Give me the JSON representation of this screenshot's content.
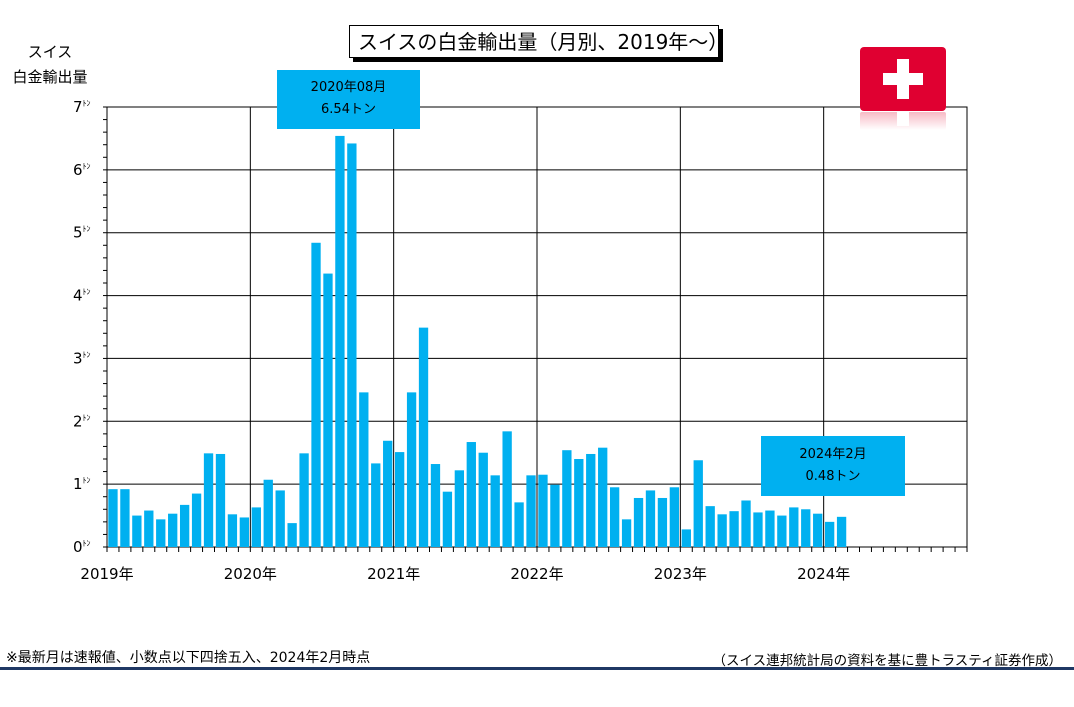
{
  "chart_data": {
    "type": "bar",
    "title": "スイスの白金輸出量（月別、2019年～）",
    "ylabel_line1": "スイス",
    "ylabel_line2": "白金輸出量",
    "ylim": [
      0,
      7
    ],
    "y_unit": "ﾄﾝ",
    "y_ticks": [
      "0",
      "1",
      "2",
      "3",
      "4",
      "5",
      "6",
      "7"
    ],
    "x_tick_labels": [
      "2019年",
      "2020年",
      "2021年",
      "2022年",
      "2023年",
      "2024年"
    ],
    "x_start": "2019-01",
    "x_end": "2024-12",
    "grid": true,
    "bar_color": "#00b0f0",
    "series": [
      {
        "values": [
          0.92,
          0.92,
          0.5,
          0.58,
          0.44,
          0.53,
          0.67,
          0.85,
          1.49,
          1.48,
          0.52,
          0.47,
          0.63,
          1.07,
          0.9,
          0.38,
          1.49,
          4.84,
          4.35,
          6.54,
          6.42,
          2.46,
          1.33,
          1.69,
          1.51,
          2.46,
          3.49,
          1.32,
          0.88,
          1.22,
          1.67,
          1.5,
          1.14,
          1.84,
          0.71,
          1.14,
          1.15,
          0.99,
          1.54,
          1.4,
          1.48,
          1.58,
          0.95,
          0.44,
          0.78,
          0.9,
          0.78,
          0.95,
          0.28,
          1.38,
          0.65,
          0.52,
          0.57,
          0.74,
          0.55,
          0.58,
          0.5,
          0.63,
          0.6,
          0.53,
          0.4,
          0.48
        ]
      }
    ],
    "annotations": [
      {
        "line1": "2020年08月",
        "line2": "6.54トン"
      },
      {
        "line1": "2024年2月",
        "line2": "0.48トン"
      }
    ]
  },
  "footnote": "※最新月は速報値、小数点以下四捨五入、2024年2月時点",
  "source": "（スイス連邦統計局の資料を基に豊トラスティ証券作成）",
  "flag_icon": "swiss-flag-icon"
}
